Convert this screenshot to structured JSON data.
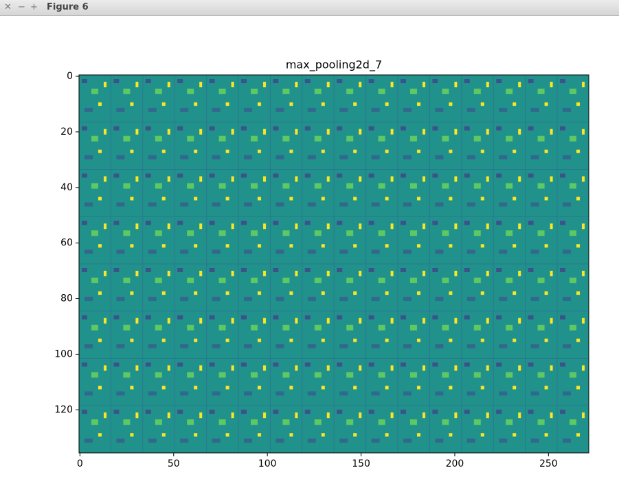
{
  "window_title": "Figure 6",
  "chart_data": {
    "type": "image",
    "title": "max_pooling2d_7",
    "xlim": [
      -0.5,
      271.5
    ],
    "ylim": [
      135.5,
      -0.5
    ],
    "xticks": [
      0,
      50,
      100,
      150,
      200,
      250
    ],
    "yticks": [
      0,
      20,
      40,
      60,
      80,
      100,
      120
    ]
  }
}
